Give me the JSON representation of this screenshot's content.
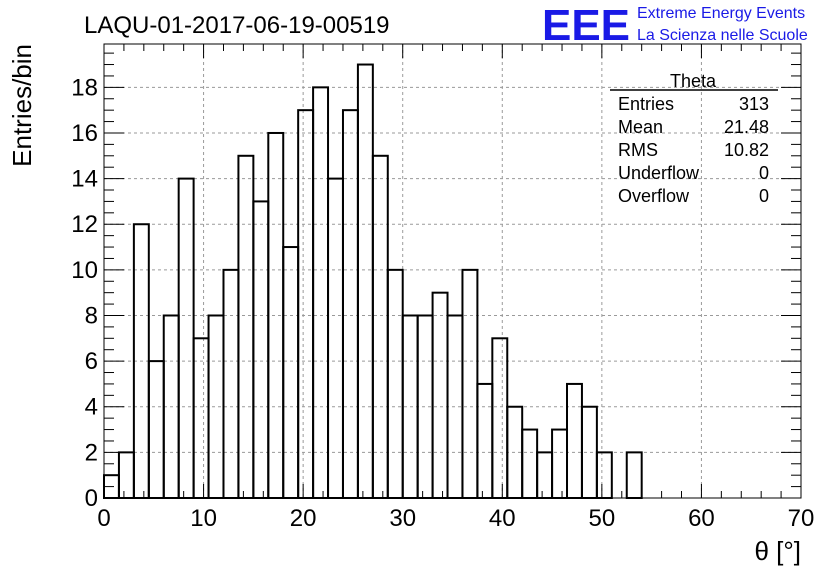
{
  "chart_data": {
    "type": "bar",
    "title": "LAQU-01-2017-06-19-00519",
    "xlabel": "θ [°]",
    "ylabel": "Entries/bin",
    "xlim": [
      0,
      70
    ],
    "ylim": [
      0,
      19.9
    ],
    "xticks": [
      "0",
      "10",
      "20",
      "30",
      "40",
      "50",
      "60",
      "70"
    ],
    "yticks": [
      "0",
      "2",
      "4",
      "6",
      "8",
      "10",
      "12",
      "14",
      "16",
      "18"
    ],
    "grid": true,
    "bin_width": 1.5,
    "values": [
      1,
      2,
      12,
      6,
      8,
      14,
      7,
      8,
      10,
      15,
      13,
      16,
      11,
      17,
      18,
      14,
      17,
      19,
      15,
      10,
      8,
      8,
      9,
      8,
      10,
      5,
      7,
      4,
      3,
      2,
      3,
      5,
      4,
      2,
      0,
      2,
      0
    ]
  },
  "stats": {
    "title": "Theta",
    "rows": [
      {
        "label": "Entries",
        "value": "313"
      },
      {
        "label": "Mean",
        "value": "21.48"
      },
      {
        "label": "RMS",
        "value": "10.82"
      },
      {
        "label": "Underflow",
        "value": "0"
      },
      {
        "label": "Overflow",
        "value": "0"
      }
    ]
  },
  "logo": {
    "text": "EEE",
    "line1": "Extreme Energy Events",
    "line2": "La Scienza nelle Scuole",
    "color": "#1a1ae6"
  }
}
